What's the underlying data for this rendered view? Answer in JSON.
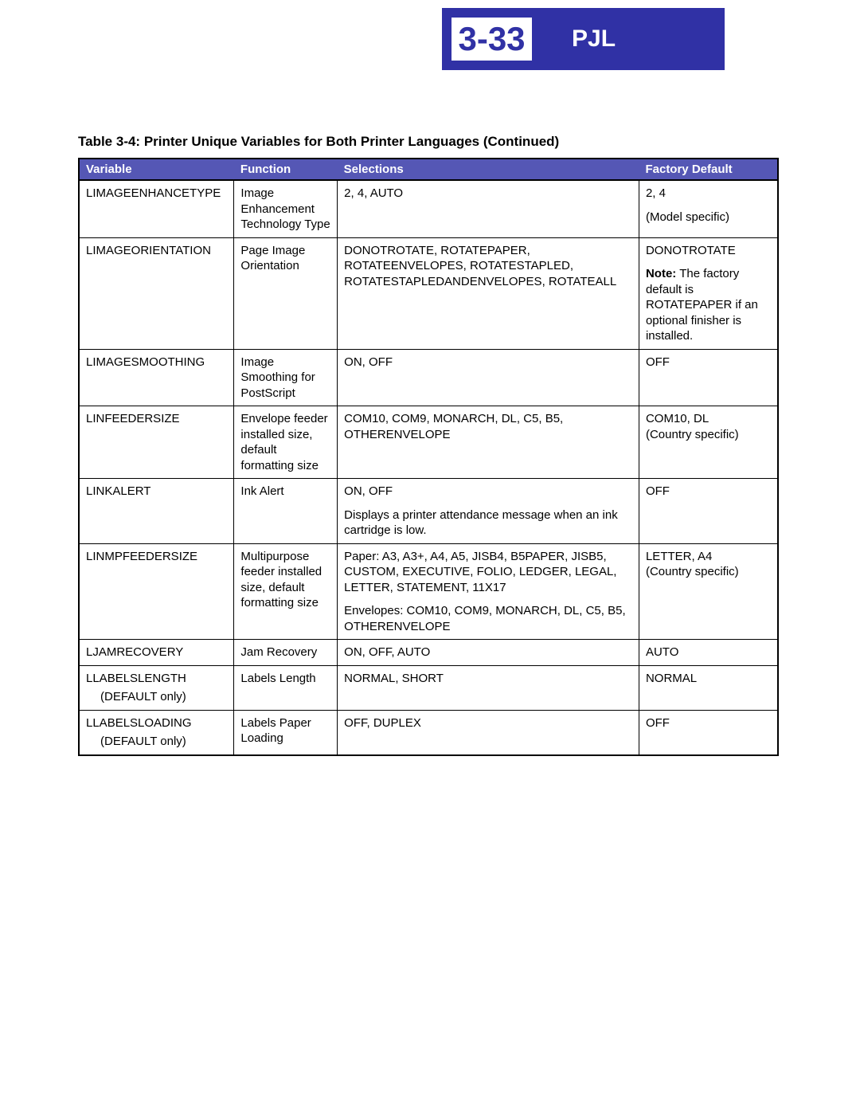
{
  "header": {
    "page_number": "3-33",
    "section": "PJL"
  },
  "caption": "Table 3-4:  Printer Unique Variables for Both Printer Languages (Continued)",
  "columns": {
    "variable": "Variable",
    "function": "Function",
    "selections": "Selections",
    "factory_default": "Factory Default"
  },
  "rows": [
    {
      "variable": "LIMAGEENHANCETYPE",
      "function": "Image Enhancement Technology Type",
      "selections": "2, 4, AUTO",
      "default_top": "2, 4",
      "default_sub": "(Model specific)"
    },
    {
      "variable": "LIMAGEORIENTATION",
      "function": "Page Image Orientation",
      "selections": "DONOTROTATE, ROTATEPAPER, ROTATEENVELOPES, ROTATESTAPLED, ROTATESTAPLEDANDENVELOPES, ROTATEALL",
      "default_top": "DONOTROTATE",
      "note_label": "Note:",
      "note_text": " The factory default is ROTATEPAPER if an optional finisher is installed."
    },
    {
      "variable": "LIMAGESMOOTHING",
      "function": "Image Smoothing for PostScript",
      "selections": "ON, OFF",
      "default_top": "OFF"
    },
    {
      "variable": "LINFEEDERSIZE",
      "function": "Envelope feeder installed size, default formatting size",
      "selections": "COM10, COM9, MONARCH, DL, C5, B5, OTHERENVELOPE",
      "default_top": "COM10, DL",
      "default_sub_inline": "(Country specific)"
    },
    {
      "variable": "LINKALERT",
      "function": "Ink Alert",
      "selections_top": "ON, OFF",
      "selections_para": "Displays a printer attendance message when an ink cartridge is low.",
      "default_top": "OFF"
    },
    {
      "variable": "LINMPFEEDERSIZE",
      "function": "Multipurpose feeder installed size, default formatting size",
      "selections_top": "Paper: A3, A3+, A4, A5, JISB4, B5PAPER, JISB5, CUSTOM, EXECUTIVE, FOLIO, LEDGER, LEGAL, LETTER, STATEMENT, 11X17",
      "selections_para": "Envelopes: COM10, COM9, MONARCH, DL, C5, B5, OTHERENVELOPE",
      "default_top": "LETTER, A4",
      "default_sub_inline": "(Country specific)"
    },
    {
      "variable": "LJAMRECOVERY",
      "function": "Jam Recovery",
      "selections": "ON, OFF, AUTO",
      "default_top": "AUTO"
    },
    {
      "variable": "LLABELSLENGTH",
      "variable_sub": "(DEFAULT only)",
      "function": "Labels Length",
      "selections": "NORMAL, SHORT",
      "default_top": "NORMAL"
    },
    {
      "variable": "LLABELSLOADING",
      "variable_sub": "(DEFAULT only)",
      "function": "Labels Paper Loading",
      "selections": "OFF, DUPLEX",
      "default_top": "OFF"
    }
  ]
}
